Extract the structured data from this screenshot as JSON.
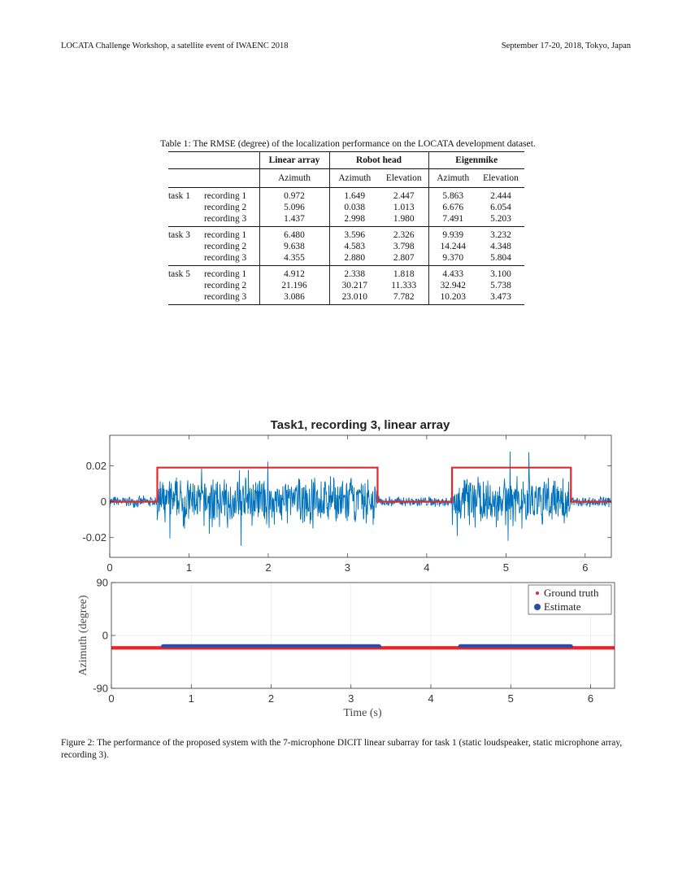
{
  "header": {
    "left": "LOCATA Challenge Workshop, a satellite event of IWAENC 2018",
    "right": "September 17-20, 2018, Tokyo, Japan"
  },
  "table": {
    "caption": "Table 1: The RMSE (degree) of the localization performance on the LOCATA development dataset.",
    "groups": [
      "Linear array",
      "Robot head",
      "Eigenmike"
    ],
    "subheaders": [
      "Azimuth",
      "Azimuth",
      "Elevation",
      "Azimuth",
      "Elevation"
    ],
    "rows": [
      {
        "task": "task 1",
        "recording": "recording 1",
        "values": [
          "0.972",
          "1.649",
          "2.447",
          "5.863",
          "2.444"
        ]
      },
      {
        "task": "",
        "recording": "recording 2",
        "values": [
          "5.096",
          "0.038",
          "1.013",
          "6.676",
          "6.054"
        ]
      },
      {
        "task": "",
        "recording": "recording 3",
        "values": [
          "1.437",
          "2.998",
          "1.980",
          "7.491",
          "5.203"
        ]
      },
      {
        "task": "task 3",
        "recording": "recording 1",
        "values": [
          "6.480",
          "3.596",
          "2.326",
          "9.939",
          "3.232"
        ]
      },
      {
        "task": "",
        "recording": "recording 2",
        "values": [
          "9.638",
          "4.583",
          "3.798",
          "14.244",
          "4.348"
        ]
      },
      {
        "task": "",
        "recording": "recording 3",
        "values": [
          "4.355",
          "2.880",
          "2.807",
          "9.370",
          "5.804"
        ]
      },
      {
        "task": "task 5",
        "recording": "recording 1",
        "values": [
          "4.912",
          "2.338",
          "1.818",
          "4.433",
          "3.100"
        ]
      },
      {
        "task": "",
        "recording": "recording 2",
        "values": [
          "21.196",
          "30.217",
          "11.333",
          "32.942",
          "5.738"
        ]
      },
      {
        "task": "",
        "recording": "recording 3",
        "values": [
          "3.086",
          "23.010",
          "7.782",
          "10.203",
          "3.473"
        ]
      }
    ]
  },
  "chart_data": [
    {
      "type": "line",
      "title": "Task1, recording 3, linear array",
      "xlabel": "",
      "ylabel": "",
      "xlim": [
        0,
        6.33
      ],
      "ylim": [
        -0.031,
        0.037
      ],
      "xticks": [
        "0",
        "1",
        "2",
        "3",
        "4",
        "5",
        "6"
      ],
      "yticks": [
        "0.02",
        "0",
        "-0.02"
      ],
      "series": [
        {
          "kind": "waveform",
          "color": "#0072BD",
          "active_intervals": [
            [
              0.6,
              3.38
            ],
            [
              4.32,
              5.82
            ]
          ]
        },
        {
          "kind": "step",
          "color": "#E8262B",
          "x": [
            0,
            0.6,
            0.6,
            3.38,
            3.38,
            4.32,
            4.32,
            5.82,
            5.82,
            6.33
          ],
          "y": [
            0,
            0,
            0.019,
            0.019,
            0,
            0,
            0.019,
            0.019,
            0,
            0
          ]
        }
      ],
      "grid": false
    },
    {
      "type": "scatter",
      "title": "",
      "xlabel": "Time (s)",
      "ylabel": "Azimuth (degree)",
      "xlim": [
        0,
        6.3
      ],
      "ylim": [
        -90,
        90
      ],
      "xticks": [
        "0",
        "1",
        "2",
        "3",
        "4",
        "5",
        "6"
      ],
      "yticks": [
        "90",
        "0",
        "-90"
      ],
      "legend_position": "top-right",
      "series": [
        {
          "name": "Ground truth",
          "color": "#E8262B",
          "x": [
            0,
            6.3
          ],
          "y": [
            -21,
            -21
          ]
        },
        {
          "name": "Estimate",
          "color": "#2B4DA8",
          "segments": [
            {
              "x": [
                0.65,
                3.35
              ],
              "y": -19
            },
            {
              "x": [
                4.37,
                5.75
              ],
              "y": -19
            }
          ]
        }
      ],
      "grid": true
    }
  ],
  "figure_caption": "Figure 2: The performance of the proposed system with the 7-microphone DICIT linear subarray for task 1 (static loudspeaker, static microphone array, recording 3)."
}
